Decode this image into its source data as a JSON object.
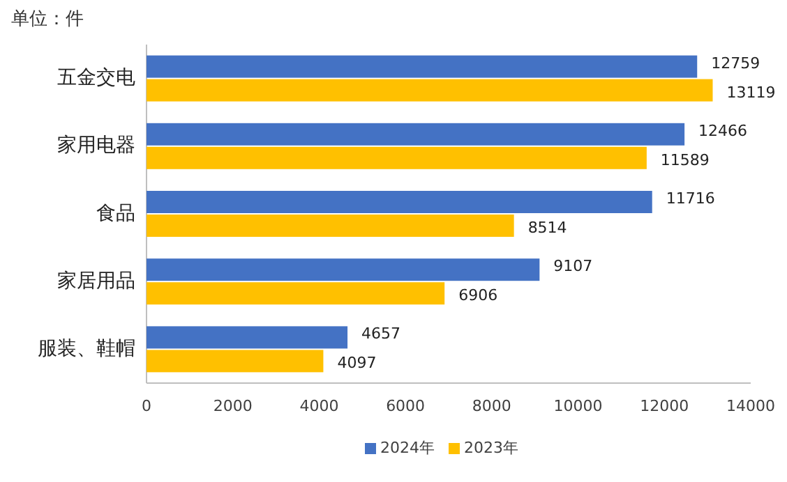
{
  "chart_data": {
    "type": "bar",
    "orientation": "horizontal",
    "annotations": [
      "单位：件"
    ],
    "categories": [
      "五金交电",
      "家用电器",
      "食品",
      "家居用品",
      "服装、鞋帽"
    ],
    "series": [
      {
        "name": "2024年",
        "color": "#4472c4",
        "values": [
          12759,
          12466,
          11716,
          9107,
          4657
        ]
      },
      {
        "name": "2023年",
        "color": "#ffc000",
        "values": [
          13119,
          11589,
          8514,
          6906,
          4097
        ]
      }
    ],
    "xlim": [
      0,
      14000
    ],
    "xticks": [
      0,
      2000,
      4000,
      6000,
      8000,
      10000,
      12000,
      14000
    ],
    "data_labels": true,
    "legend": "bottom",
    "grid": false
  }
}
